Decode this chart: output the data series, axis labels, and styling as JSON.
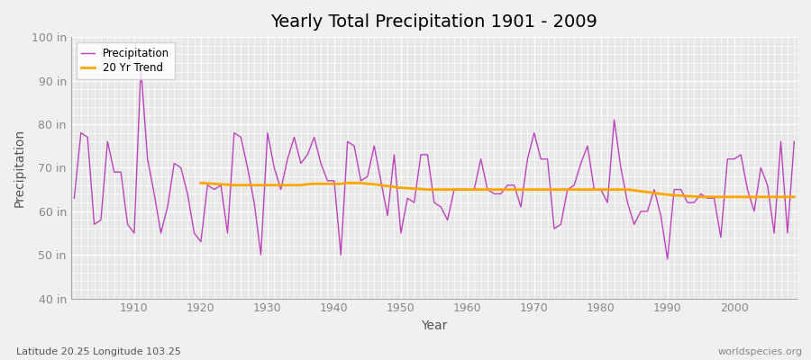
{
  "title": "Yearly Total Precipitation 1901 - 2009",
  "xlabel": "Year",
  "ylabel": "Precipitation",
  "subtitle": "Latitude 20.25 Longitude 103.25",
  "watermark": "worldspecies.org",
  "years": [
    1901,
    1902,
    1903,
    1904,
    1905,
    1906,
    1907,
    1908,
    1909,
    1910,
    1911,
    1912,
    1913,
    1914,
    1915,
    1916,
    1917,
    1918,
    1919,
    1920,
    1921,
    1922,
    1923,
    1924,
    1925,
    1926,
    1927,
    1928,
    1929,
    1930,
    1931,
    1932,
    1933,
    1934,
    1935,
    1936,
    1937,
    1938,
    1939,
    1940,
    1941,
    1942,
    1943,
    1944,
    1945,
    1946,
    1947,
    1948,
    1949,
    1950,
    1951,
    1952,
    1953,
    1954,
    1955,
    1956,
    1957,
    1958,
    1959,
    1960,
    1961,
    1962,
    1963,
    1964,
    1965,
    1966,
    1967,
    1968,
    1969,
    1970,
    1971,
    1972,
    1973,
    1974,
    1975,
    1976,
    1977,
    1978,
    1979,
    1980,
    1981,
    1982,
    1983,
    1984,
    1985,
    1986,
    1987,
    1988,
    1989,
    1990,
    1991,
    1992,
    1993,
    1994,
    1995,
    1996,
    1997,
    1998,
    1999,
    2000,
    2001,
    2002,
    2003,
    2004,
    2005,
    2006,
    2007,
    2008,
    2009
  ],
  "precip": [
    63,
    78,
    77,
    57,
    58,
    76,
    69,
    69,
    57,
    55,
    93,
    72,
    64,
    55,
    61,
    71,
    70,
    64,
    55,
    53,
    66,
    65,
    66,
    55,
    78,
    77,
    70,
    62,
    50,
    78,
    70,
    65,
    72,
    77,
    71,
    73,
    77,
    71,
    67,
    67,
    50,
    76,
    75,
    67,
    68,
    75,
    67,
    59,
    73,
    55,
    63,
    62,
    73,
    73,
    62,
    61,
    58,
    65,
    65,
    65,
    65,
    72,
    65,
    64,
    64,
    66,
    66,
    61,
    72,
    78,
    72,
    72,
    56,
    57,
    65,
    66,
    71,
    75,
    65,
    65,
    62,
    81,
    70,
    62,
    57,
    60,
    60,
    65,
    59,
    49,
    65,
    65,
    62,
    62,
    64,
    63,
    63,
    54,
    72,
    72,
    73,
    65,
    60,
    70,
    66,
    55,
    76,
    55,
    76
  ],
  "trend_years": [
    1920,
    1921,
    1922,
    1923,
    1924,
    1925,
    1926,
    1927,
    1928,
    1929,
    1930,
    1931,
    1932,
    1933,
    1934,
    1935,
    1936,
    1937,
    1938,
    1939,
    1940,
    1941,
    1942,
    1943,
    1944,
    1945,
    1946,
    1947,
    1948,
    1949,
    1950,
    1951,
    1952,
    1953,
    1954,
    1955,
    1956,
    1957,
    1958,
    1959,
    1960,
    1961,
    1962,
    1963,
    1964,
    1965,
    1966,
    1967,
    1968,
    1969,
    1970,
    1971,
    1972,
    1973,
    1974,
    1975,
    1976,
    1977,
    1978,
    1979,
    1980,
    1981,
    1982,
    1983,
    1984,
    1985,
    1986,
    1987,
    1988,
    1989,
    1990,
    1991,
    1992,
    1993,
    1994,
    1995,
    1996,
    1997,
    1998,
    1999,
    2000,
    2001,
    2002,
    2003,
    2004,
    2005,
    2006,
    2007,
    2008,
    2009
  ],
  "trend": [
    66.5,
    66.4,
    66.3,
    66.2,
    66.1,
    66.0,
    66.0,
    66.0,
    66.0,
    66.0,
    66.0,
    66.0,
    66.0,
    66.0,
    66.0,
    66.0,
    66.2,
    66.3,
    66.3,
    66.3,
    66.3,
    66.3,
    66.5,
    66.5,
    66.5,
    66.3,
    66.2,
    66.0,
    65.8,
    65.6,
    65.4,
    65.3,
    65.2,
    65.1,
    65.0,
    65.0,
    65.0,
    65.0,
    65.0,
    65.0,
    65.0,
    65.0,
    65.0,
    65.0,
    65.0,
    65.0,
    65.0,
    65.0,
    65.0,
    65.0,
    65.0,
    65.0,
    65.0,
    65.0,
    65.0,
    65.0,
    65.0,
    65.0,
    65.0,
    65.0,
    65.0,
    65.0,
    65.0,
    65.0,
    65.0,
    64.8,
    64.6,
    64.4,
    64.2,
    64.0,
    63.8,
    63.7,
    63.6,
    63.5,
    63.4,
    63.3,
    63.3,
    63.3,
    63.3,
    63.3,
    63.3,
    63.3,
    63.3,
    63.3,
    63.3,
    63.3,
    63.3,
    63.3,
    63.3,
    63.3
  ],
  "ylim": [
    40,
    100
  ],
  "yticks": [
    40,
    50,
    60,
    70,
    80,
    90,
    100
  ],
  "ytick_labels": [
    "40 in",
    "50 in",
    "60 in",
    "70 in",
    "80 in",
    "90 in",
    "100 in"
  ],
  "xticks": [
    1910,
    1920,
    1930,
    1940,
    1950,
    1960,
    1970,
    1980,
    1990,
    2000
  ],
  "precip_color": "#bb44bb",
  "trend_color": "#ffa500",
  "bg_color": "#f0f0f0",
  "plot_bg_color": "#e8e8e8",
  "grid_color": "#ffffff",
  "title_fontsize": 14,
  "axis_label_fontsize": 10,
  "tick_fontsize": 9,
  "tick_color": "#888888"
}
